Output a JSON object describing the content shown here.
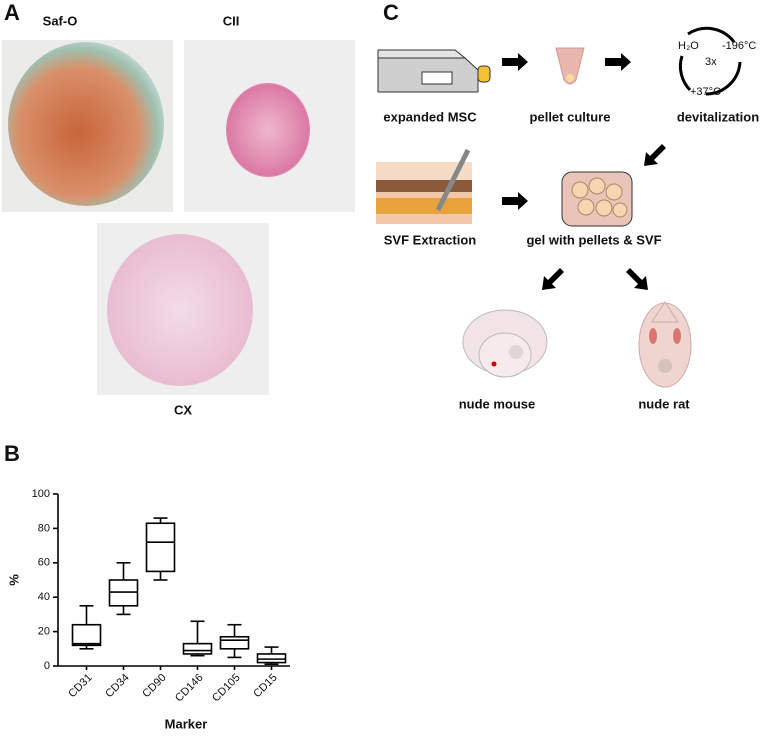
{
  "panels": {
    "a": {
      "label": "A",
      "images": [
        "Saf-O",
        "CII",
        "CX"
      ]
    },
    "b": {
      "label": "B"
    },
    "c": {
      "label": "C",
      "steps": [
        "expanded MSC",
        "pellet culture",
        "devitalization",
        "SVF Extraction",
        "gel with pellets & SVF",
        "nude mouse",
        "nude rat"
      ],
      "cycle": {
        "top_left": "H₂O",
        "top_right": "-196°C",
        "center": "3x",
        "bottom": "+37°C"
      }
    }
  },
  "chart_data": {
    "type": "box",
    "xlabel": "Marker",
    "ylabel": "%",
    "categories": [
      "CD31",
      "CD34",
      "CD90",
      "CD146",
      "CD105",
      "CD15"
    ],
    "min": [
      10,
      30,
      50,
      6,
      5,
      1
    ],
    "q1": [
      12,
      35,
      55,
      7,
      10,
      2
    ],
    "median": [
      13,
      43,
      72,
      9,
      15,
      4
    ],
    "q3": [
      24,
      50,
      83,
      13,
      17,
      7
    ],
    "max": [
      35,
      60,
      86,
      26,
      24,
      11
    ],
    "color": "#000000",
    "ylim": [
      0,
      100
    ],
    "yticks": [
      0,
      20,
      40,
      60,
      80,
      100
    ],
    "grid": false
  }
}
